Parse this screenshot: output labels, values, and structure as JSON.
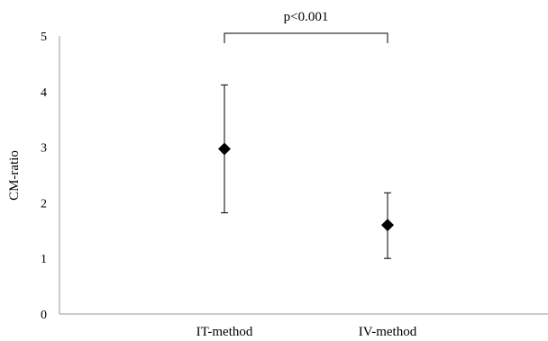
{
  "chart_data": {
    "type": "scatter",
    "title": "",
    "xlabel": "",
    "ylabel": "CM-ratio",
    "ylim": [
      0,
      5
    ],
    "yticks": [
      "0",
      "1",
      "2",
      "3",
      "4",
      "5"
    ],
    "categories": [
      "IT-method",
      "IV-method"
    ],
    "series": [
      {
        "values": [
          2.97,
          1.6
        ],
        "error_low": [
          1.82,
          1.0
        ],
        "error_high": [
          4.12,
          2.18
        ]
      }
    ],
    "grid": false,
    "legend": "none",
    "annotation": {
      "text": "p<0.001",
      "between": [
        "IT-method",
        "IV-method"
      ]
    }
  }
}
